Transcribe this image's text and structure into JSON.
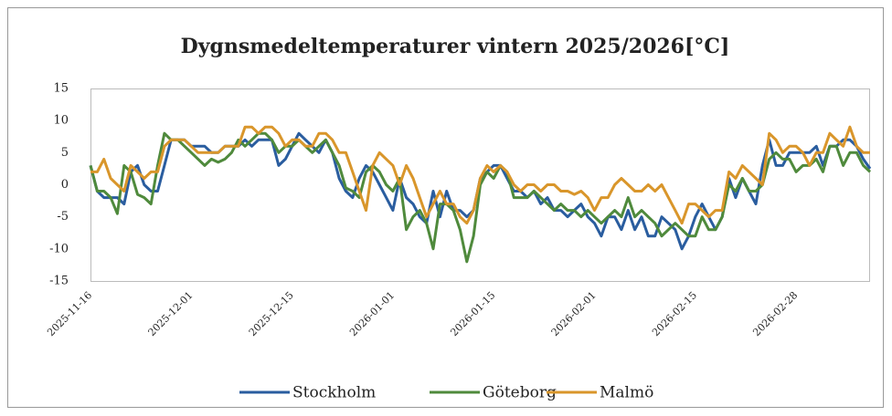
{
  "chart_data": {
    "type": "line",
    "title": "Dygnsmedeltemperaturer vintern 2025/2026[°C]",
    "categories": [
      "2025-11-16",
      null,
      null,
      null,
      null,
      null,
      null,
      null,
      null,
      null,
      null,
      null,
      null,
      null,
      null,
      "2025-12-01",
      null,
      null,
      null,
      null,
      null,
      null,
      null,
      null,
      null,
      null,
      null,
      null,
      null,
      null,
      "2025-12-15",
      null,
      null,
      null,
      null,
      null,
      null,
      null,
      null,
      null,
      null,
      null,
      null,
      null,
      null,
      "2026-01-01",
      null,
      null,
      null,
      null,
      null,
      null,
      null,
      null,
      null,
      null,
      null,
      null,
      null,
      null,
      "2026-01-15",
      null,
      null,
      null,
      null,
      null,
      null,
      null,
      null,
      null,
      null,
      null,
      null,
      null,
      null,
      "2026-02-01",
      null,
      null,
      null,
      null,
      null,
      null,
      null,
      null,
      null,
      null,
      null,
      null,
      null,
      null,
      "2026-02-15",
      null,
      null,
      null,
      null,
      null,
      null,
      null,
      null,
      null,
      null,
      null,
      null,
      null,
      null,
      "2026-02-28",
      null,
      null,
      null,
      null,
      null,
      null,
      null,
      null,
      null,
      null,
      null
    ],
    "series": [
      {
        "name": "Stockholm",
        "color": "#2a5d9f",
        "values": [
          3,
          -1,
          -2,
          -2,
          -2,
          -3,
          2,
          3,
          0,
          -1,
          -1,
          3,
          7,
          7,
          7,
          6,
          6,
          6,
          5,
          5,
          6,
          6,
          6,
          7,
          6,
          7,
          7,
          7,
          3,
          4,
          6,
          8,
          7,
          6,
          5,
          7,
          5,
          1,
          -1,
          -2,
          1,
          3,
          2,
          0,
          -2,
          -4,
          1,
          -2,
          -3,
          -5,
          -6,
          -1,
          -5,
          -1,
          -4,
          -4,
          -5,
          -4,
          1,
          2,
          3,
          3,
          1,
          -1,
          -1,
          -2,
          -1,
          -3,
          -2,
          -4,
          -4,
          -5,
          -4,
          -3,
          -5,
          -6,
          -8,
          -5,
          -5,
          -7,
          -4,
          -7,
          -5,
          -8,
          -8,
          -5,
          -6,
          -7,
          -10,
          -8,
          -5,
          -3,
          -5,
          -7,
          -5,
          1,
          -2,
          1,
          -1,
          -3,
          3,
          7,
          3,
          3,
          5,
          5,
          5,
          5,
          6,
          3,
          6,
          6,
          7,
          7,
          6,
          4,
          2.5
        ]
      },
      {
        "name": "Göteborg",
        "color": "#4f8a3c",
        "values": [
          3,
          -1,
          -1,
          -2,
          -4.5,
          3,
          2,
          -1.5,
          -2,
          -3,
          3,
          8,
          7,
          7,
          6,
          5,
          4,
          3,
          4,
          3.5,
          4,
          5,
          7,
          6,
          7,
          8,
          8,
          7,
          5,
          6,
          6,
          7,
          6,
          5,
          6,
          7,
          5,
          3,
          -0.5,
          -1,
          -2,
          2,
          3,
          2,
          0,
          -1,
          1,
          -7,
          -5,
          -4,
          -6,
          -10,
          -3,
          -3,
          -4,
          -7,
          -12,
          -8,
          0,
          2,
          1,
          3,
          2,
          -2,
          -2,
          -2,
          -1,
          -2,
          -3,
          -4,
          -3,
          -4,
          -4,
          -5,
          -4,
          -5,
          -6,
          -5,
          -4,
          -5,
          -2,
          -5,
          -4,
          -5,
          -6,
          -8,
          -7,
          -6,
          -7,
          -8,
          -8,
          -5,
          -7,
          -7,
          -5,
          0,
          -1,
          1,
          -1,
          -1,
          0,
          4,
          5,
          4,
          4,
          2,
          3,
          3,
          4,
          2,
          6,
          6,
          3,
          5,
          5,
          3,
          2
        ]
      },
      {
        "name": "Malmö",
        "color": "#d9962b",
        "values": [
          2,
          2,
          4,
          1,
          0,
          -1,
          3,
          2,
          1,
          2,
          2,
          6,
          7,
          7,
          7,
          6,
          5,
          5,
          5,
          5,
          6,
          6,
          6,
          9,
          9,
          8,
          9,
          9,
          8,
          6,
          7,
          7,
          6,
          6,
          8,
          8,
          7,
          5,
          5,
          2,
          -1,
          -4,
          3,
          5,
          4,
          3,
          0,
          3,
          1,
          -2,
          -5,
          -3,
          -1,
          -3,
          -3,
          -5,
          -6,
          -4,
          1,
          3,
          2,
          3,
          2,
          0,
          -1,
          0,
          0,
          -1,
          0,
          0,
          -1,
          -1,
          -1.5,
          -1,
          -2,
          -4,
          -2,
          -2,
          0,
          1,
          0,
          -1,
          -1,
          0,
          -1,
          0,
          -2,
          -4,
          -6,
          -3,
          -3,
          -4,
          -5,
          -4,
          -4,
          2,
          1,
          3,
          2,
          1,
          0,
          8,
          7,
          5,
          6,
          6,
          5,
          3,
          5,
          5,
          8,
          7,
          6,
          9,
          6,
          5,
          5
        ]
      }
    ],
    "ylim": [
      -15,
      15
    ],
    "yticks": [
      -15,
      -10,
      -5,
      0,
      5,
      10,
      15
    ],
    "grid": false,
    "legend": "bottom"
  }
}
